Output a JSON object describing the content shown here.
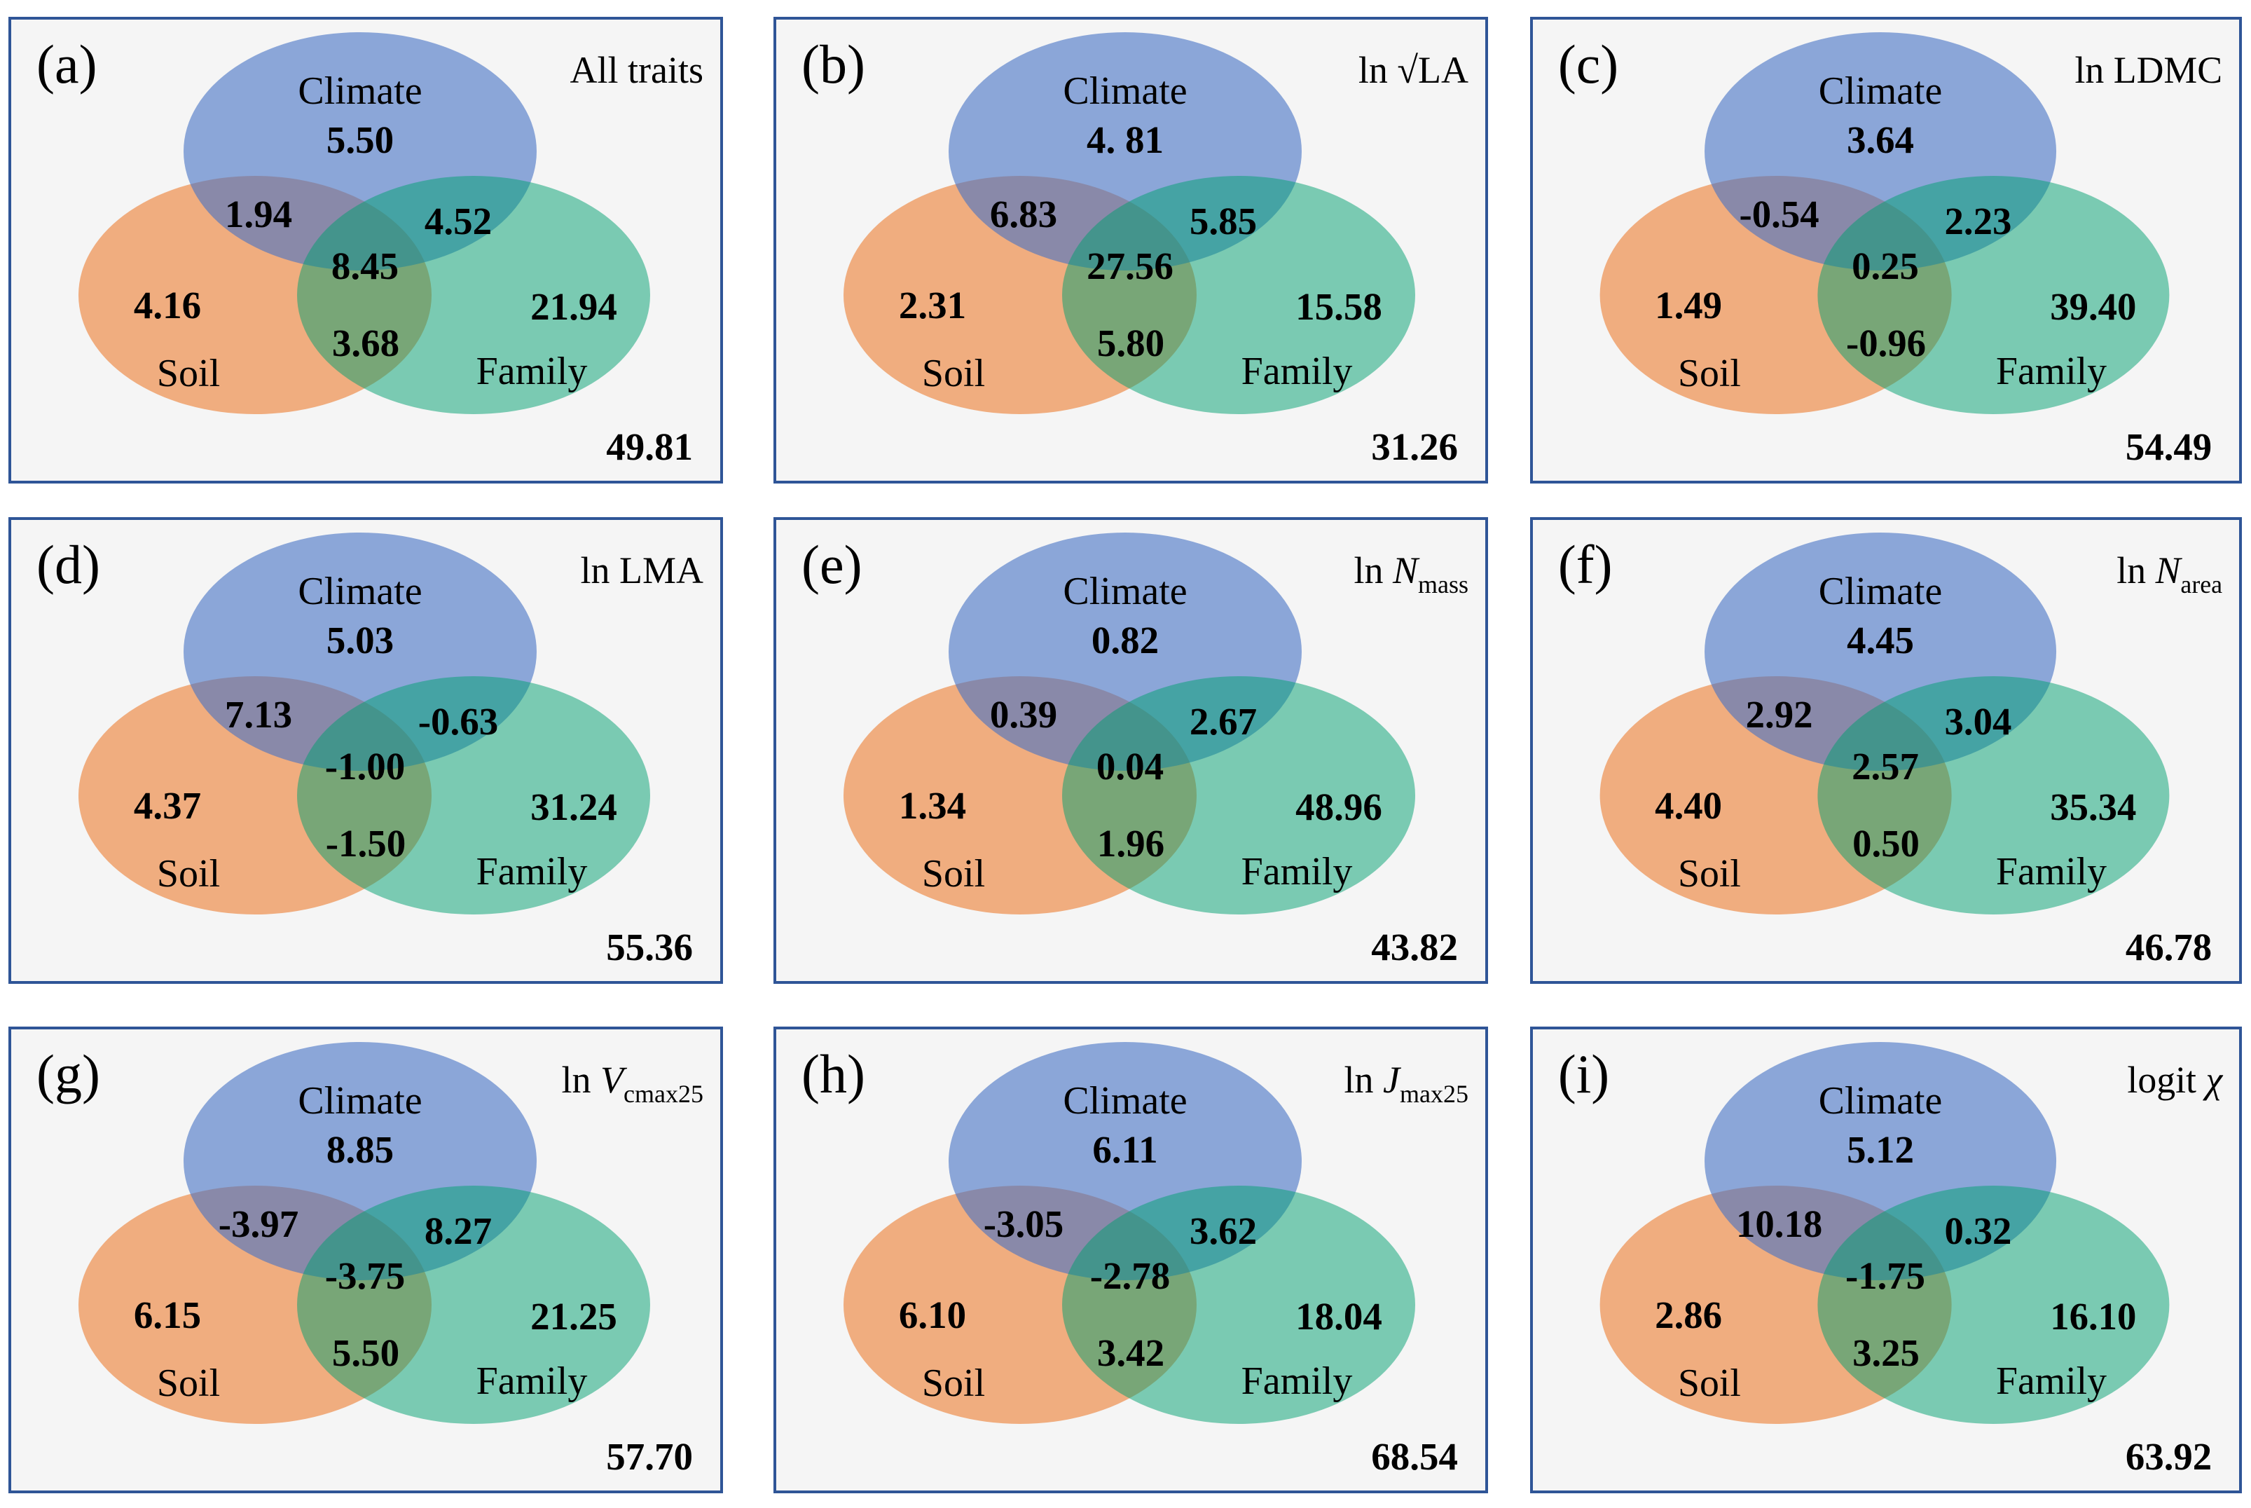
{
  "labels": {
    "climate": "Climate",
    "soil": "Soil",
    "family": "Family"
  },
  "colors": {
    "climate": "#4472c4",
    "soil": "#ed7d31",
    "family": "#00a070",
    "frame": "#2f5597"
  },
  "panels": [
    {
      "id": "a",
      "letter": "(a)",
      "title": {
        "pre": "All traits",
        "italic": "",
        "sub": ""
      },
      "values": {
        "climate": "5.50",
        "soil": "4.16",
        "family": "21.94",
        "climate_soil": "1.94",
        "climate_family": "4.52",
        "soil_family": "3.68",
        "all": "8.45",
        "residual": "49.81"
      }
    },
    {
      "id": "b",
      "letter": "(b)",
      "title": {
        "pre": "ln √LA",
        "italic": "",
        "sub": ""
      },
      "values": {
        "climate": "4. 81",
        "soil": "2.31",
        "family": "15.58",
        "climate_soil": "6.83",
        "climate_family": "5.85",
        "soil_family": "5.80",
        "all": "27.56",
        "residual": "31.26"
      }
    },
    {
      "id": "c",
      "letter": "(c)",
      "title": {
        "pre": "ln LDMC",
        "italic": "",
        "sub": ""
      },
      "values": {
        "climate": "3.64",
        "soil": "1.49",
        "family": "39.40",
        "climate_soil": "-0.54",
        "climate_family": "2.23",
        "soil_family": "-0.96",
        "all": "0.25",
        "residual": "54.49"
      }
    },
    {
      "id": "d",
      "letter": "(d)",
      "title": {
        "pre": "ln LMA",
        "italic": "",
        "sub": ""
      },
      "values": {
        "climate": "5.03",
        "soil": "4.37",
        "family": "31.24",
        "climate_soil": "7.13",
        "climate_family": "-0.63",
        "soil_family": "-1.50",
        "all": "-1.00",
        "residual": "55.36"
      }
    },
    {
      "id": "e",
      "letter": "(e)",
      "title": {
        "pre": "ln ",
        "italic": "N",
        "sub": "mass"
      },
      "values": {
        "climate": "0.82",
        "soil": "1.34",
        "family": "48.96",
        "climate_soil": "0.39",
        "climate_family": "2.67",
        "soil_family": "1.96",
        "all": "0.04",
        "residual": "43.82"
      }
    },
    {
      "id": "f",
      "letter": "(f)",
      "title": {
        "pre": "ln ",
        "italic": "N",
        "sub": "area"
      },
      "values": {
        "climate": "4.45",
        "soil": "4.40",
        "family": "35.34",
        "climate_soil": "2.92",
        "climate_family": "3.04",
        "soil_family": "0.50",
        "all": "2.57",
        "residual": "46.78"
      }
    },
    {
      "id": "g",
      "letter": "(g)",
      "title": {
        "pre": "ln ",
        "italic": "V",
        "sub": "cmax25"
      },
      "values": {
        "climate": "8.85",
        "soil": "6.15",
        "family": "21.25",
        "climate_soil": "-3.97",
        "climate_family": "8.27",
        "soil_family": "5.50",
        "all": "-3.75",
        "residual": "57.70"
      }
    },
    {
      "id": "h",
      "letter": "(h)",
      "title": {
        "pre": "ln ",
        "italic": "J",
        "sub": "max25"
      },
      "values": {
        "climate": "6.11",
        "soil": "6.10",
        "family": "18.04",
        "climate_soil": "-3.05",
        "climate_family": "3.62",
        "soil_family": "3.42",
        "all": "-2.78",
        "residual": "68.54"
      }
    },
    {
      "id": "i",
      "letter": "(i)",
      "title": {
        "pre": "logit ",
        "italic": "χ",
        "sub": ""
      },
      "values": {
        "climate": "5.12",
        "soil": "2.86",
        "family": "16.10",
        "climate_soil": "10.18",
        "climate_family": "0.32",
        "soil_family": "3.25",
        "all": "-1.75",
        "residual": "63.92"
      }
    }
  ]
}
